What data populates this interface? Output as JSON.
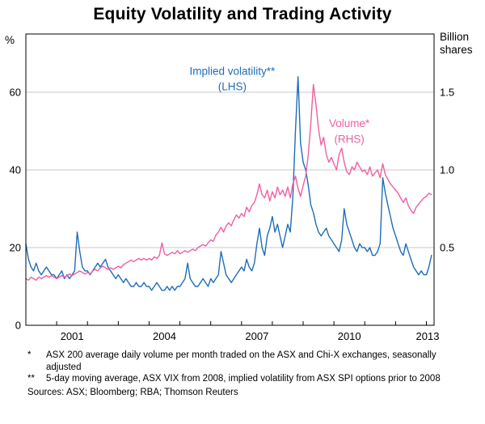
{
  "title": "Equity Volatility and Trading Activity",
  "footnotes": [
    {
      "mark": "*",
      "text": "ASX 200 average daily volume per month traded on the ASX and Chi-X exchanges, seasonally adjusted"
    },
    {
      "mark": "**",
      "text": "5-day moving average, ASX VIX from 2008, implied volatility from ASX SPI options prior to 2008"
    }
  ],
  "sources": "Sources: ASX; Bloomberg; RBA; Thomson Reuters",
  "chart_data": {
    "type": "line",
    "title": "Equity Volatility and Trading Activity",
    "xlabel": "",
    "left_ylabel": "%",
    "right_ylabel": "Billion shares",
    "left_unit": "%",
    "right_unit_lines": [
      "Billion",
      "shares"
    ],
    "x_domain": [
      2000.0,
      2013.25
    ],
    "x_start": 2000.0,
    "points_per_year": 12,
    "left_ylim": [
      0,
      75
    ],
    "right_ylim": [
      0,
      1.875
    ],
    "left_ticks": [
      0,
      20,
      40,
      60
    ],
    "right_ticks": [
      "0.5",
      "1.0",
      "1.5"
    ],
    "x_tick_start": 2000,
    "x_tick_end": 2013,
    "x_labels": [
      2001,
      2004,
      2007,
      2010,
      2013
    ],
    "grid": true,
    "legend_position": "annotations-inline",
    "annotations": [
      {
        "text": "Implied volatility**",
        "x": 2006.7,
        "y": 64.5,
        "color": "#1f6db8"
      },
      {
        "text": "(LHS)",
        "x": 2006.7,
        "y": 60.5,
        "color": "#1f6db8"
      },
      {
        "text": "Volume*",
        "x": 2010.5,
        "y": 51.0,
        "color": "#ef5fa2"
      },
      {
        "text": "(RHS)",
        "x": 2010.5,
        "y": 47.0,
        "color": "#ef5fa2"
      }
    ],
    "series": [
      {
        "id": "implied-volatility",
        "name": "Implied volatility (LHS)",
        "axis": "left",
        "unit": "%",
        "color": "#1f6db8",
        "values": [
          21,
          17,
          15,
          14,
          16,
          14,
          13,
          14,
          15,
          14,
          13,
          13,
          12,
          13,
          14,
          12,
          13,
          12,
          13,
          14,
          24,
          19,
          15,
          14,
          14,
          13,
          14,
          15,
          16,
          15,
          16,
          17,
          15,
          14,
          13,
          12,
          13,
          12,
          11,
          12,
          11,
          10,
          10,
          11,
          10,
          10,
          11,
          10,
          10,
          9,
          10,
          11,
          10,
          9,
          9,
          10,
          9,
          10,
          9,
          10,
          10,
          11,
          12,
          16,
          12,
          11,
          10,
          10,
          11,
          12,
          11,
          10,
          12,
          11,
          12,
          13,
          19,
          16,
          13,
          12,
          11,
          12,
          13,
          14,
          15,
          14,
          17,
          15,
          14,
          16,
          21,
          25,
          20,
          18,
          23,
          25,
          28,
          24,
          26,
          23,
          20,
          23,
          26,
          24,
          33,
          50,
          64,
          47,
          42,
          40,
          36,
          31,
          29,
          26,
          24,
          23,
          24,
          25,
          23,
          22,
          21,
          20,
          19,
          22,
          30,
          26,
          24,
          22,
          20,
          19,
          21,
          20,
          20,
          19,
          20,
          18,
          18,
          19,
          21,
          38,
          34,
          31,
          28,
          25,
          23,
          21,
          19,
          18,
          21,
          19,
          17,
          15,
          14,
          13,
          14,
          13,
          13,
          15,
          18
        ]
      },
      {
        "id": "volume",
        "name": "Volume (RHS)",
        "axis": "right",
        "unit": "billion shares",
        "color": "#ef5fa2",
        "values": [
          0.3,
          0.29,
          0.31,
          0.3,
          0.29,
          0.31,
          0.3,
          0.31,
          0.32,
          0.31,
          0.32,
          0.31,
          0.3,
          0.31,
          0.32,
          0.31,
          0.32,
          0.33,
          0.32,
          0.33,
          0.34,
          0.35,
          0.34,
          0.33,
          0.34,
          0.33,
          0.35,
          0.36,
          0.35,
          0.37,
          0.38,
          0.37,
          0.36,
          0.37,
          0.36,
          0.37,
          0.38,
          0.37,
          0.39,
          0.4,
          0.41,
          0.42,
          0.41,
          0.42,
          0.43,
          0.42,
          0.43,
          0.42,
          0.43,
          0.42,
          0.44,
          0.43,
          0.45,
          0.53,
          0.46,
          0.45,
          0.46,
          0.47,
          0.46,
          0.48,
          0.46,
          0.47,
          0.48,
          0.47,
          0.48,
          0.49,
          0.48,
          0.5,
          0.51,
          0.52,
          0.51,
          0.53,
          0.55,
          0.54,
          0.58,
          0.6,
          0.63,
          0.6,
          0.64,
          0.66,
          0.64,
          0.68,
          0.71,
          0.69,
          0.72,
          0.7,
          0.76,
          0.73,
          0.77,
          0.79,
          0.84,
          0.91,
          0.84,
          0.82,
          0.87,
          0.8,
          0.86,
          0.82,
          0.89,
          0.84,
          0.87,
          0.83,
          0.89,
          0.82,
          0.91,
          0.96,
          0.88,
          0.83,
          0.9,
          0.96,
          1.1,
          1.3,
          1.55,
          1.42,
          1.26,
          1.16,
          1.21,
          1.1,
          1.05,
          1.08,
          1.04,
          1.0,
          1.1,
          1.14,
          1.05,
          0.99,
          0.97,
          1.02,
          1.0,
          1.05,
          1.02,
          0.99,
          1.0,
          0.97,
          1.02,
          0.96,
          0.98,
          1.0,
          0.95,
          1.04,
          0.97,
          0.94,
          0.91,
          0.89,
          0.87,
          0.85,
          0.82,
          0.79,
          0.82,
          0.77,
          0.74,
          0.72,
          0.76,
          0.78,
          0.8,
          0.82,
          0.83,
          0.85,
          0.84
        ]
      }
    ]
  }
}
